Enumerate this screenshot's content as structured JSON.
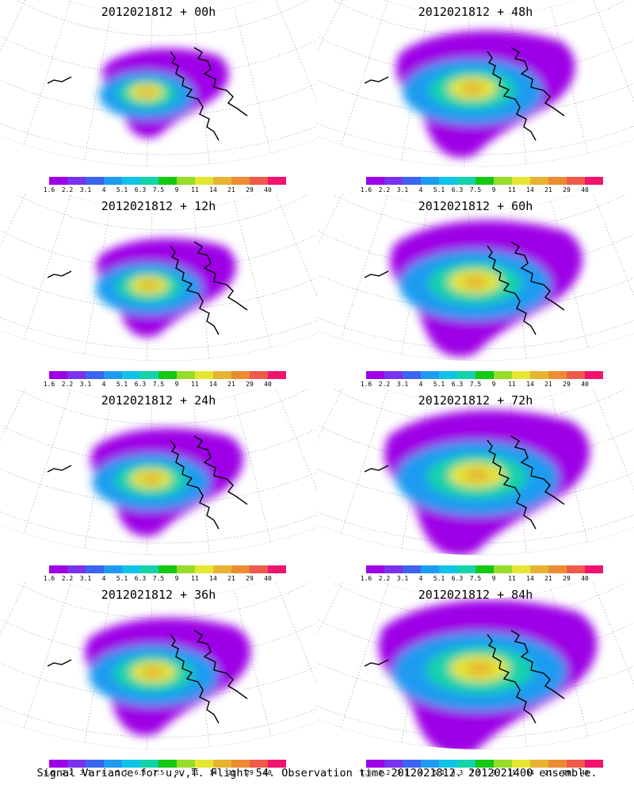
{
  "colorbar": {
    "labels": [
      "1.6",
      "2.2",
      "3.1",
      "4",
      "5.1",
      "6.3",
      "7.5",
      "9",
      "11",
      "14",
      "21",
      "29",
      "40"
    ],
    "colors": [
      "#9d00e6",
      "#7a32ee",
      "#3c64f0",
      "#1e9bf0",
      "#0fc3e6",
      "#14d2aa",
      "#14c814",
      "#96dc28",
      "#e6e632",
      "#e6b432",
      "#eb8c32",
      "#f05a4b",
      "#f0146e"
    ]
  },
  "panels": [
    {
      "title": "2012021812 + 00h",
      "lead_hours": 0
    },
    {
      "title": "2012021812 + 48h",
      "lead_hours": 48
    },
    {
      "title": "2012021812 + 12h",
      "lead_hours": 12
    },
    {
      "title": "2012021812 + 60h",
      "lead_hours": 60
    },
    {
      "title": "2012021812 + 24h",
      "lead_hours": 24
    },
    {
      "title": "2012021812 + 72h",
      "lead_hours": 72
    },
    {
      "title": "2012021812 + 36h",
      "lead_hours": 36
    },
    {
      "title": "2012021812 + 84h",
      "lead_hours": 84
    }
  ],
  "caption": "Signal Variance for u,v,T. Flight 54. Observation time 2012021812. 2012021400 ensemble."
}
